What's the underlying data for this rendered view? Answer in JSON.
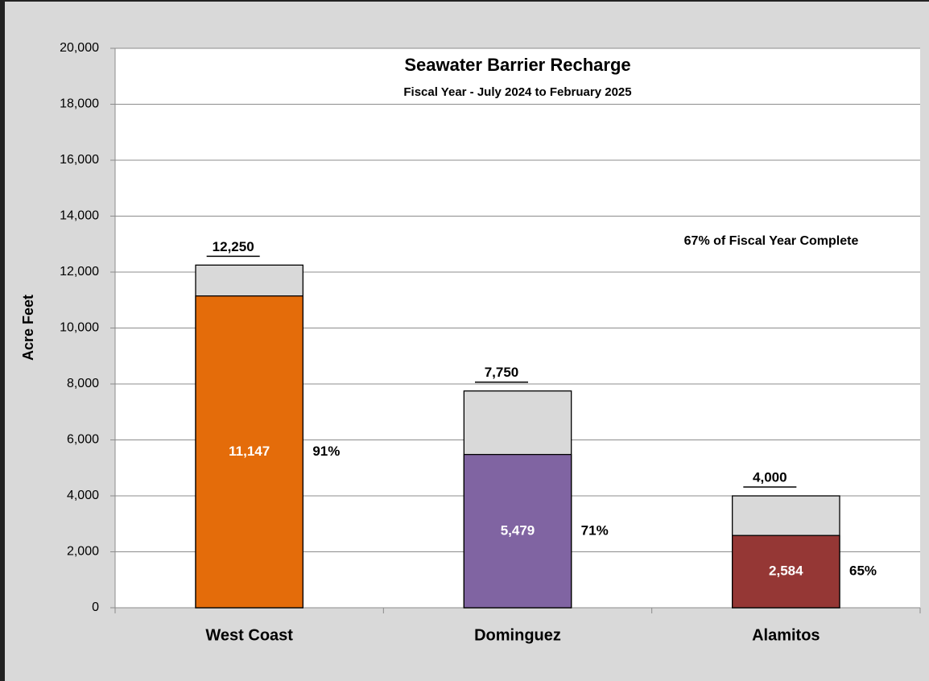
{
  "chart_data": {
    "type": "bar",
    "title": "Seawater Barrier Recharge",
    "subtitle": "Fiscal Year - July 2024 to February 2025",
    "ylabel": "Acre Feet",
    "annotation": "67% of Fiscal Year Complete",
    "categories": [
      "West Coast",
      "Dominguez",
      "Alamitos"
    ],
    "series": [
      {
        "color": "#d9d9d9",
        "values": [
          12250,
          7750,
          4000
        ],
        "value_labels": [
          "12,250",
          "7,750",
          "4,000"
        ]
      },
      {
        "colors": [
          "#e46c0a",
          "#8064a2",
          "#953735"
        ],
        "values": [
          11147,
          5479,
          2584
        ],
        "value_labels": [
          "11,147",
          "5,479",
          "2,584"
        ]
      }
    ],
    "percent_labels": [
      "91%",
      "71%",
      "65%"
    ],
    "ylim": [
      0,
      20000
    ],
    "yticks": [
      0,
      {
        "value": 2000,
        "label": "2,000"
      },
      {
        "value": 4000,
        "label": "4,000"
      },
      {
        "value": 6000,
        "label": "6,000"
      },
      {
        "value": 8000,
        "label": "8,000"
      },
      {
        "value": 10000,
        "label": "10,000"
      },
      {
        "value": 12000,
        "label": "12,000"
      },
      {
        "value": 14000,
        "label": "14,000"
      },
      {
        "value": 16000,
        "label": "16,000"
      },
      {
        "value": 18000,
        "label": "18,000"
      },
      {
        "value": 20000,
        "label": "20,000"
      }
    ],
    "grid": true
  }
}
